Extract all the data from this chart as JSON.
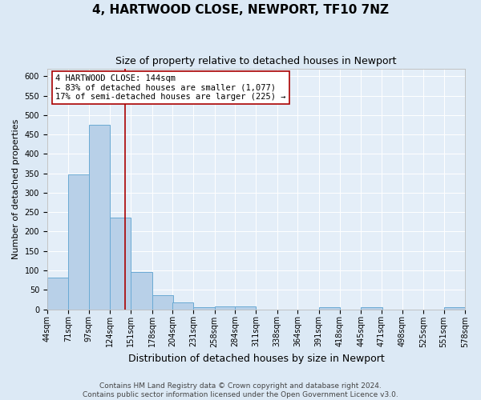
{
  "title": "4, HARTWOOD CLOSE, NEWPORT, TF10 7NZ",
  "subtitle": "Size of property relative to detached houses in Newport",
  "xlabel": "Distribution of detached houses by size in Newport",
  "ylabel": "Number of detached properties",
  "bar_values": [
    82,
    348,
    475,
    236,
    96,
    37,
    17,
    6,
    8,
    8,
    0,
    0,
    0,
    5,
    0,
    5,
    0,
    0,
    0,
    5
  ],
  "bin_edges": [
    44,
    71,
    97,
    124,
    151,
    178,
    204,
    231,
    258,
    284,
    311,
    338,
    364,
    391,
    418,
    445,
    471,
    498,
    525,
    551,
    578
  ],
  "tick_labels": [
    "44sqm",
    "71sqm",
    "97sqm",
    "124sqm",
    "151sqm",
    "178sqm",
    "204sqm",
    "231sqm",
    "258sqm",
    "284sqm",
    "311sqm",
    "338sqm",
    "364sqm",
    "391sqm",
    "418sqm",
    "445sqm",
    "471sqm",
    "498sqm",
    "525sqm",
    "551sqm",
    "578sqm"
  ],
  "bar_color": "#b8d0e8",
  "bar_edge_color": "#6aaad4",
  "bg_color": "#dce9f5",
  "plot_bg_color": "#e4eef8",
  "grid_color": "#ffffff",
  "vline_x": 144,
  "vline_color": "#aa0000",
  "annotation_title": "4 HARTWOOD CLOSE: 144sqm",
  "annotation_line1": "← 83% of detached houses are smaller (1,077)",
  "annotation_line2": "17% of semi-detached houses are larger (225) →",
  "annotation_box_facecolor": "#ffffff",
  "annotation_box_edgecolor": "#aa0000",
  "ylim": [
    0,
    620
  ],
  "yticks": [
    0,
    50,
    100,
    150,
    200,
    250,
    300,
    350,
    400,
    450,
    500,
    550,
    600
  ],
  "footer1": "Contains HM Land Registry data © Crown copyright and database right 2024.",
  "footer2": "Contains public sector information licensed under the Open Government Licence v3.0.",
  "title_fontsize": 11,
  "subtitle_fontsize": 9,
  "xlabel_fontsize": 9,
  "ylabel_fontsize": 8,
  "tick_fontsize": 7,
  "annot_fontsize": 7.5,
  "footer_fontsize": 6.5
}
